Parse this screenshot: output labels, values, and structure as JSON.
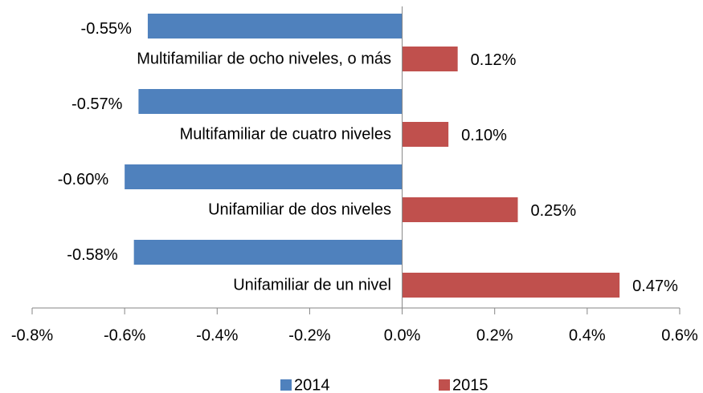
{
  "chart_data": {
    "type": "bar",
    "orientation": "horizontal",
    "categories": [
      "Multifamiliar de ocho niveles, o más",
      "Multifamiliar de cuatro niveles",
      "Unifamiliar de dos niveles",
      "Unifamiliar de un nivel"
    ],
    "series": [
      {
        "name": "2014",
        "color": "#4f81bd",
        "values": [
          -0.55,
          -0.57,
          -0.6,
          -0.58
        ],
        "value_labels": [
          "-0.55%",
          "-0.57%",
          "-0.60%",
          "-0.58%"
        ]
      },
      {
        "name": "2015",
        "color": "#c0504d",
        "values": [
          0.12,
          0.1,
          0.25,
          0.47
        ],
        "value_labels": [
          "0.12%",
          "0.10%",
          "0.25%",
          "0.47%"
        ]
      }
    ],
    "xlim": [
      -0.8,
      0.6
    ],
    "xticks": [
      {
        "value": -0.8,
        "label": "-0.8%"
      },
      {
        "value": -0.6,
        "label": "-0.6%"
      },
      {
        "value": -0.4,
        "label": "-0.4%"
      },
      {
        "value": -0.2,
        "label": "-0.2%"
      },
      {
        "value": 0,
        "label": "0.0%"
      },
      {
        "value": 0.2,
        "label": "0.2%"
      },
      {
        "value": 0.4,
        "label": "0.4%"
      },
      {
        "value": 0.6,
        "label": "0.6%"
      }
    ],
    "legend": "bottom"
  }
}
